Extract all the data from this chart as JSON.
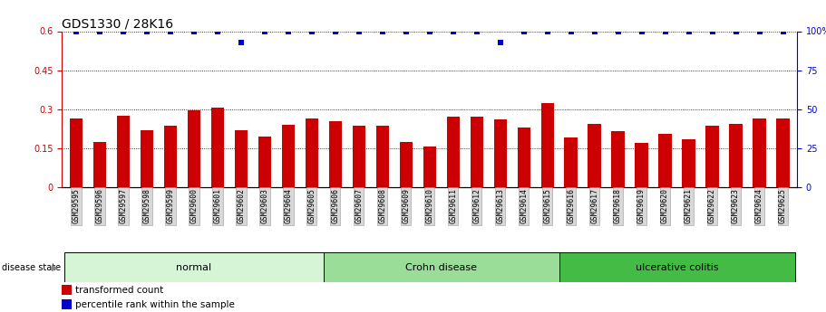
{
  "title": "GDS1330 / 28K16",
  "samples": [
    "GSM29595",
    "GSM29596",
    "GSM29597",
    "GSM29598",
    "GSM29599",
    "GSM29600",
    "GSM29601",
    "GSM29602",
    "GSM29603",
    "GSM29604",
    "GSM29605",
    "GSM29606",
    "GSM29607",
    "GSM29608",
    "GSM29609",
    "GSM29610",
    "GSM29611",
    "GSM29612",
    "GSM29613",
    "GSM29614",
    "GSM29615",
    "GSM29616",
    "GSM29617",
    "GSM29618",
    "GSM29619",
    "GSM29620",
    "GSM29621",
    "GSM29622",
    "GSM29623",
    "GSM29624",
    "GSM29625"
  ],
  "bar_values": [
    0.265,
    0.175,
    0.275,
    0.22,
    0.235,
    0.295,
    0.305,
    0.22,
    0.195,
    0.24,
    0.265,
    0.255,
    0.235,
    0.235,
    0.175,
    0.155,
    0.27,
    0.27,
    0.26,
    0.23,
    0.325,
    0.19,
    0.245,
    0.215,
    0.17,
    0.205,
    0.185,
    0.235,
    0.245,
    0.265,
    0.265
  ],
  "percentile_values": [
    100,
    100,
    100,
    100,
    100,
    100,
    100,
    93,
    100,
    100,
    100,
    100,
    100,
    100,
    100,
    100,
    100,
    100,
    93,
    100,
    100,
    100,
    100,
    100,
    100,
    100,
    100,
    100,
    100,
    100,
    100
  ],
  "bar_color": "#cc0000",
  "percentile_color": "#0000cc",
  "ylim_left": [
    0,
    0.6
  ],
  "ylim_right": [
    0,
    100
  ],
  "yticks_left": [
    0,
    0.15,
    0.3,
    0.45,
    0.6
  ],
  "ytick_labels_left": [
    "0",
    "0.15",
    "0.3",
    "0.45",
    "0.6"
  ],
  "yticks_right": [
    0,
    25,
    50,
    75,
    100
  ],
  "ytick_labels_right": [
    "0",
    "25",
    "50",
    "75",
    "100%"
  ],
  "groups": [
    {
      "label": "normal",
      "start": 0,
      "end": 10,
      "color": "#d6f5d6"
    },
    {
      "label": "Crohn disease",
      "start": 11,
      "end": 20,
      "color": "#99dd99"
    },
    {
      "label": "ulcerative colitis",
      "start": 21,
      "end": 30,
      "color": "#44bb44"
    }
  ],
  "group_label": "disease state",
  "legend_items": [
    {
      "label": "transformed count",
      "color": "#cc0000"
    },
    {
      "label": "percentile rank within the sample",
      "color": "#0000cc"
    }
  ],
  "title_fontsize": 10,
  "tick_fontsize": 7,
  "bar_width": 0.55
}
